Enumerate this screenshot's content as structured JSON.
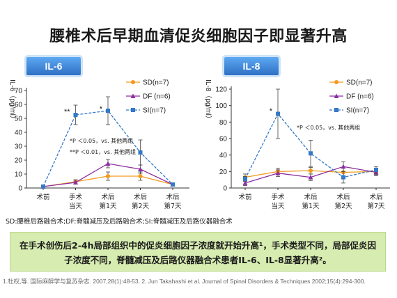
{
  "slide": {
    "title": "腰椎术后早期血清促炎细胞因子即显著升高",
    "caption": "SD:腰椎后路融合术;DF:脊髓减压及后路融合术;SI:脊髓减压及后路仪器融合术",
    "note": "在手术创伤后2-4h局部组织中的促炎细胞因子浓度就开始升高¹，手术类型不同，局部促炎因子浓度不同，脊髓减压及后路仪器融合术患者IL-6、IL-8显著升高²。",
    "refs": "1.杜权,等. 国际麻醉学与复苏杂志. 2007,28(1):48-53.  2. Jun Takahashi et al. Journal of Spinal Disorders & Techniques 2002;15(4):294-300."
  },
  "chart_data": [
    {
      "type": "line",
      "tab_label": "IL-6",
      "ylabel": "IL-6（pg/ml）",
      "ylim": [
        0,
        70
      ],
      "yticks": [
        0,
        10,
        20,
        30,
        40,
        50,
        60,
        70
      ],
      "categories": [
        "术前",
        "手术当天",
        "术后第1天",
        "术后第2天",
        "术后第7天"
      ],
      "category_lines": [
        [
          "术前"
        ],
        [
          "手术",
          "当天"
        ],
        [
          "术后",
          "第1天"
        ],
        [
          "术后",
          "第2天"
        ],
        [
          "术后",
          "第7天"
        ]
      ],
      "series": [
        {
          "name": "SD(n=7)",
          "color": "#f39a1e",
          "marker": "circle",
          "values": [
            1,
            4.5,
            8.5,
            8.5,
            2.5
          ],
          "err": [
            0,
            1.5,
            3,
            3,
            0.5
          ]
        },
        {
          "name": "DF (n=6)",
          "color": "#8b2fa0",
          "marker": "triangle",
          "values": [
            1,
            4,
            17.5,
            13.5,
            2.5
          ],
          "err": [
            0,
            1,
            3,
            3,
            0.5
          ]
        },
        {
          "name": "SI(n=7)",
          "color": "#3478c6",
          "marker": "square",
          "values": [
            1,
            52.5,
            55.5,
            25.5,
            2.5
          ],
          "err": [
            0,
            7,
            10,
            9,
            0.5
          ]
        }
      ],
      "markers": [
        {
          "text": "**",
          "x_index": 1,
          "y": 54
        },
        {
          "text": "*",
          "x_index": 2,
          "y": 56
        }
      ],
      "annotations": [
        "*P ＜0.05，vs. 其他两组",
        "**P ＜0.01，vs. 其他两组"
      ]
    },
    {
      "type": "line",
      "tab_label": "IL-8",
      "ylabel": "IL-8（pg/ml）",
      "ylim": [
        0,
        120
      ],
      "yticks": [
        0,
        20,
        40,
        60,
        80,
        100,
        120
      ],
      "categories": [
        "术前",
        "手术当天",
        "术后第1天",
        "术后第2天",
        "术后第7天"
      ],
      "category_lines": [
        [
          "术前"
        ],
        [
          "手术",
          "当天"
        ],
        [
          "术后",
          "第1天"
        ],
        [
          "术后",
          "第2天"
        ],
        [
          "术后",
          "第7天"
        ]
      ],
      "series": [
        {
          "name": "SD(n=7)",
          "color": "#f39a1e",
          "marker": "circle",
          "values": [
            13,
            20,
            21,
            19,
            20
          ],
          "err": [
            4,
            4,
            4,
            5,
            4
          ]
        },
        {
          "name": "DF (n=6)",
          "color": "#8b2fa0",
          "marker": "triangle",
          "values": [
            6,
            18,
            13,
            26,
            19
          ],
          "err": [
            3,
            4,
            4,
            6,
            4
          ]
        },
        {
          "name": "SI(n=7)",
          "color": "#3478c6",
          "marker": "square",
          "values": [
            11,
            90,
            42,
            13,
            22
          ],
          "err": [
            3,
            30,
            16,
            7,
            4
          ]
        }
      ],
      "markers": [
        {
          "text": "*",
          "x_index": 1,
          "y": 92
        }
      ],
      "annotations": [
        "*P ＜0.05，vs. 其他两组"
      ]
    }
  ]
}
